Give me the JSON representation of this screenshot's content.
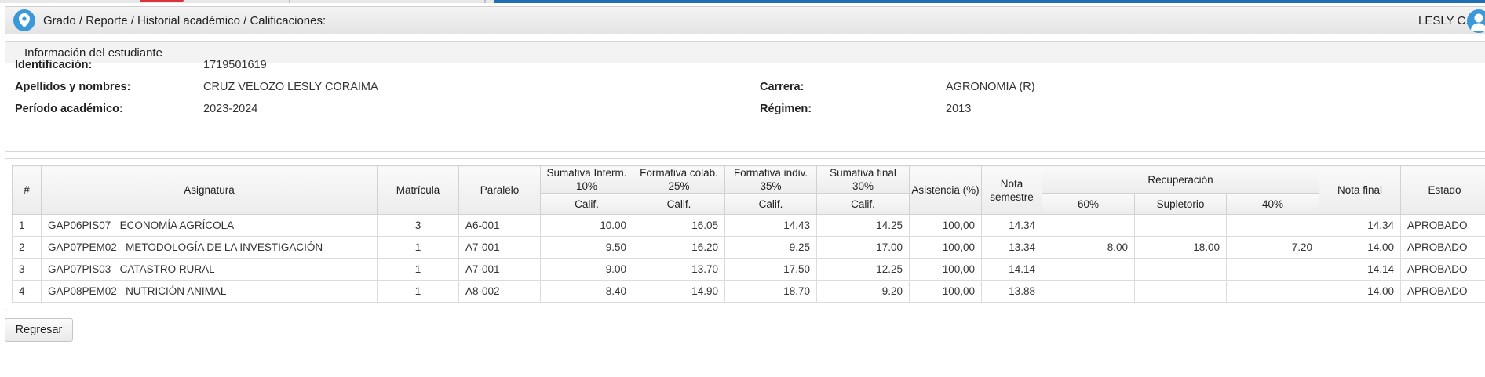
{
  "breadcrumb": {
    "text": "Grado / Reporte / Historial académico / Calificaciones:",
    "user": "LESLY C."
  },
  "student": {
    "section_title": "Información del estudiante",
    "fields": {
      "id_label": "Identificación:",
      "id_value": "1719501619",
      "name_label": "Apellidos y nombres:",
      "name_value": "CRUZ VELOZO LESLY CORAIMA",
      "career_label": "Carrera:",
      "career_value": "AGRONOMIA (R)",
      "period_label": "Período académico:",
      "period_value": "2023-2024",
      "regime_label": "Régimen:",
      "regime_value": "2013"
    }
  },
  "grades": {
    "headers": {
      "num": "#",
      "subject": "Asignatura",
      "enrollment": "Matrícula",
      "parallel": "Paralelo",
      "sum_interm": "Sumativa Interm. 10%",
      "form_colab": "Formativa colab. 25%",
      "form_indiv": "Formativa indiv. 35%",
      "sum_final": "Sumativa final 30%",
      "attendance": "Asistencia (%)",
      "semester_grade": "Nota semestre",
      "recovery": "Recuperación",
      "final_grade": "Nota final",
      "status": "Estado",
      "calif": "Calif.",
      "rec_60": "60%",
      "rec_sup": "Supletorio",
      "rec_40": "40%"
    },
    "rows": [
      {
        "n": "1",
        "code": "GAP06PIS07",
        "name": "ECONOMÍA AGRÍCOLA",
        "mat": "3",
        "par": "A6-001",
        "s1": "10.00",
        "f1": "16.05",
        "f2": "14.43",
        "s2": "14.25",
        "asis": "100,00",
        "nsem": "14.34",
        "r60": "",
        "sup": "",
        "r40": "",
        "final": "14.34",
        "estado": "APROBADO"
      },
      {
        "n": "2",
        "code": "GAP07PEM02",
        "name": "METODOLOGÍA DE LA INVESTIGACIÓN",
        "mat": "1",
        "par": "A7-001",
        "s1": "9.50",
        "f1": "16.20",
        "f2": "9.25",
        "s2": "17.00",
        "asis": "100,00",
        "nsem": "13.34",
        "r60": "8.00",
        "sup": "18.00",
        "r40": "7.20",
        "final": "14.00",
        "estado": "APROBADO"
      },
      {
        "n": "3",
        "code": "GAP07PIS03",
        "name": "CATASTRO RURAL",
        "mat": "1",
        "par": "A7-001",
        "s1": "9.00",
        "f1": "13.70",
        "f2": "17.50",
        "s2": "12.25",
        "asis": "100,00",
        "nsem": "14.14",
        "r60": "",
        "sup": "",
        "r40": "",
        "final": "14.14",
        "estado": "APROBADO"
      },
      {
        "n": "4",
        "code": "GAP08PEM02",
        "name": "NUTRICIÓN ANIMAL",
        "mat": "1",
        "par": "A8-002",
        "s1": "8.40",
        "f1": "14.90",
        "f2": "18.70",
        "s2": "9.20",
        "asis": "100,00",
        "nsem": "13.88",
        "r60": "",
        "sup": "",
        "r40": "",
        "final": "14.00",
        "estado": "APROBADO"
      }
    ]
  },
  "actions": {
    "back_label": "Regresar"
  },
  "colors": {
    "accent": "#3a9ad9",
    "top_bar_blue": "#1f6fb5",
    "top_bar_red": "#d9333f"
  },
  "icons": {
    "location": "map-pin-icon",
    "user": "user-avatar-icon"
  }
}
